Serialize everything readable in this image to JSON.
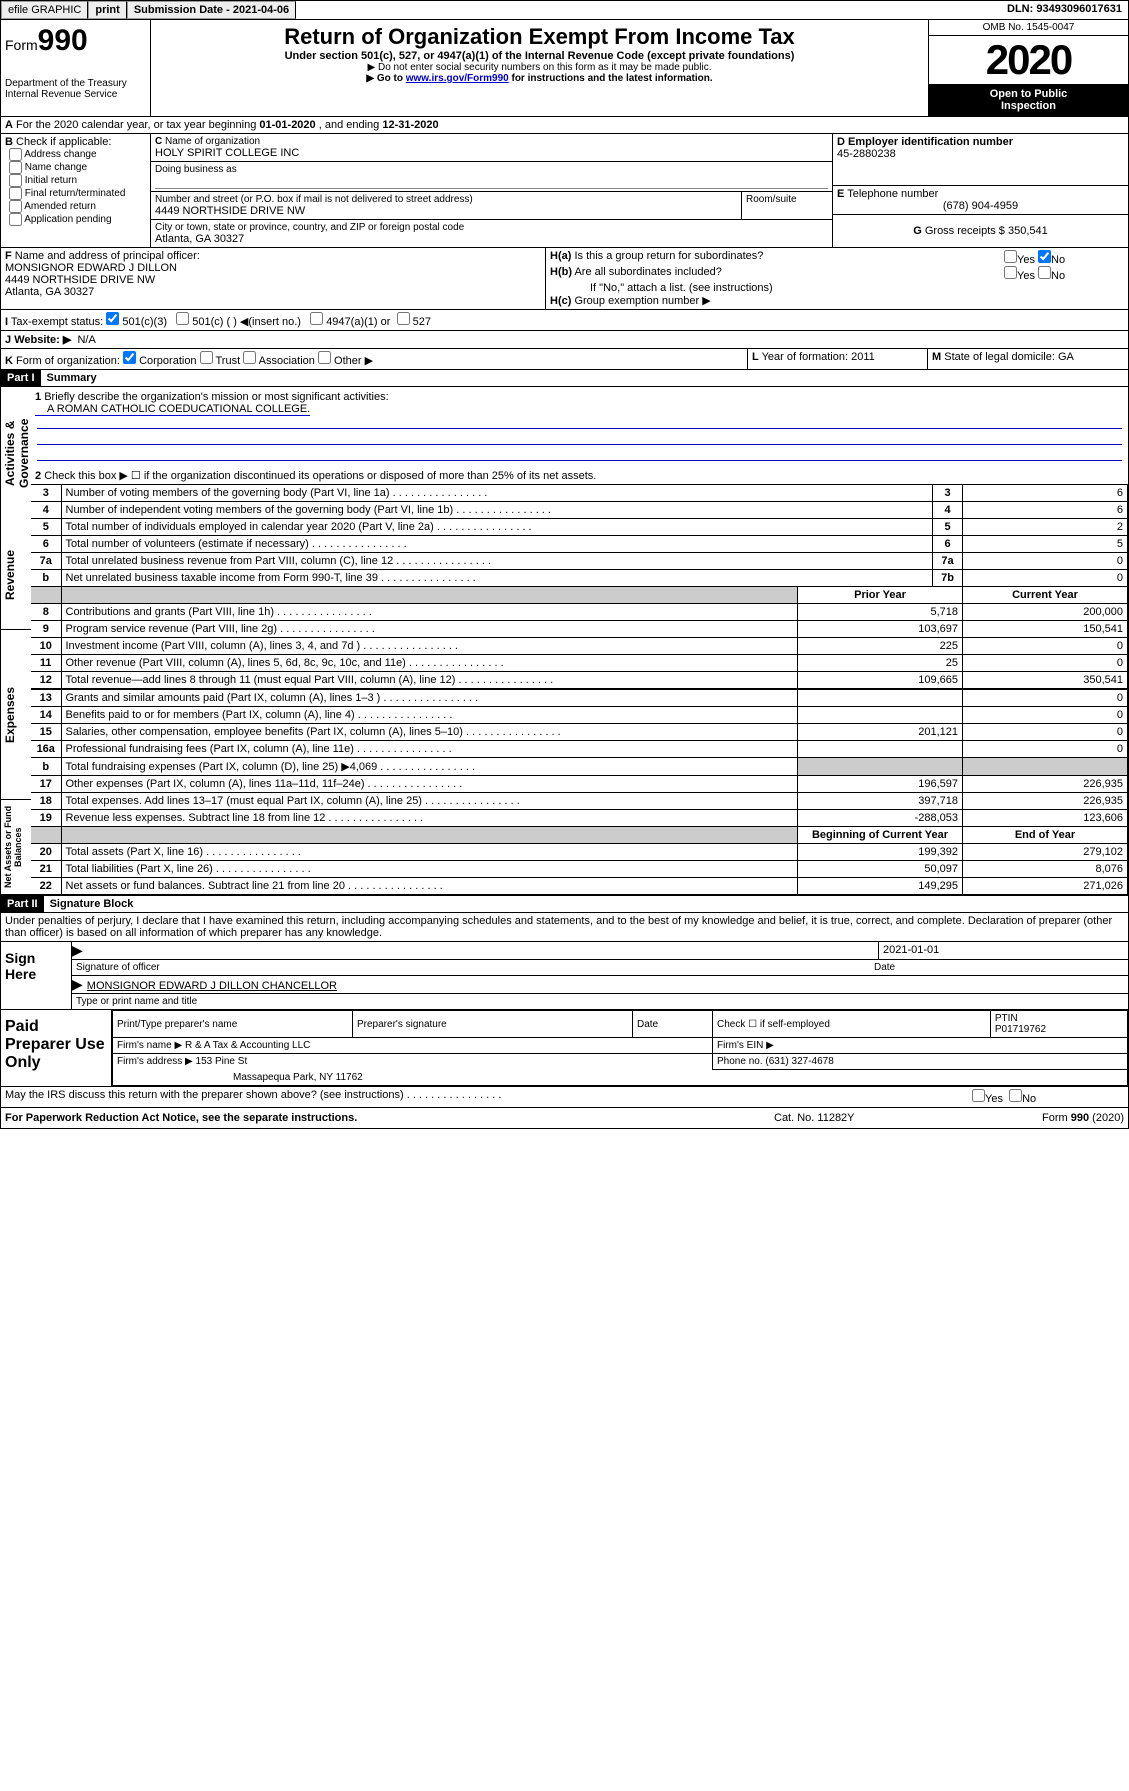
{
  "topbar": {
    "efile": "efile GRAPHIC",
    "print": "print",
    "sub_label": "Submission Date - ",
    "sub_date": "2021-04-06",
    "dln": "DLN: 93493096017631"
  },
  "header": {
    "form_label": "Form",
    "form_num": "990",
    "dept1": "Department of the Treasury",
    "dept2": "Internal Revenue Service",
    "title": "Return of Organization Exempt From Income Tax",
    "sub1": "Under section 501(c), 527, or 4947(a)(1) of the Internal Revenue Code (except private foundations)",
    "sub2": "▶ Do not enter social security numbers on this form as it may be made public.",
    "sub3a": "▶ Go to ",
    "sub3link": "www.irs.gov/Form990",
    "sub3b": " for instructions and the latest information.",
    "omb": "OMB No. 1545-0047",
    "year": "2020",
    "opi1": "Open to Public",
    "opi2": "Inspection"
  },
  "A": {
    "text1": "For the 2020 calendar year, or tax year beginning ",
    "begin": "01-01-2020",
    "text2": " , and ending ",
    "end": "12-31-2020"
  },
  "B": {
    "label": "Check if applicable:",
    "c1": "Address change",
    "c2": "Name change",
    "c3": "Initial return",
    "c4": "Final return/terminated",
    "c5": "Amended return",
    "c6": "Application pending"
  },
  "C": {
    "name_lbl": "Name of organization",
    "name": "HOLY SPIRIT COLLEGE INC",
    "dba_lbl": "Doing business as",
    "addr_lbl": "Number and street (or P.O. box if mail is not delivered to street address)",
    "room_lbl": "Room/suite",
    "addr": "4449 NORTHSIDE DRIVE NW",
    "city_lbl": "City or town, state or province, country, and ZIP or foreign postal code",
    "city": "Atlanta, GA  30327"
  },
  "D": {
    "lbl": "Employer identification number",
    "val": "45-2880238"
  },
  "E": {
    "lbl": "Telephone number",
    "val": "(678) 904-4959"
  },
  "G": {
    "lbl": "Gross receipts $",
    "val": "350,541"
  },
  "F": {
    "lbl": "Name and address of principal officer:",
    "name": "MONSIGNOR EDWARD J DILLON",
    "addr1": "4449 NORTHSIDE DRIVE NW",
    "addr2": "Atlanta, GA  30327"
  },
  "H": {
    "a": "Is this a group return for subordinates?",
    "b": "Are all subordinates included?",
    "b2": "If \"No,\" attach a list. (see instructions)",
    "c": "Group exemption number ▶",
    "yes": "Yes",
    "no": "No"
  },
  "I": {
    "lbl": "Tax-exempt status:",
    "o1": "501(c)(3)",
    "o2": "501(c) (  ) ◀(insert no.)",
    "o3": "4947(a)(1) or",
    "o4": "527"
  },
  "J": {
    "lbl": "Website: ▶",
    "val": "N/A"
  },
  "K": {
    "lbl": "Form of organization:",
    "o1": "Corporation",
    "o2": "Trust",
    "o3": "Association",
    "o4": "Other ▶"
  },
  "L": {
    "lbl": "Year of formation:",
    "val": "2011"
  },
  "M": {
    "lbl": "State of legal domicile:",
    "val": "GA"
  },
  "part1": {
    "hdr": "Part I",
    "title": "Summary"
  },
  "gov": {
    "label": "Activities & Governance",
    "l1_lbl": "Briefly describe the organization's mission or most significant activities:",
    "l1": "A ROMAN CATHOLIC COEDUCATIONAL COLLEGE.",
    "l2": "Check this box ▶ ☐ if the organization discontinued its operations or disposed of more than 25% of its net assets.",
    "lines": [
      {
        "n": "3",
        "d": "Number of voting members of the governing body (Part VI, line 1a)",
        "b": "3",
        "v": "6"
      },
      {
        "n": "4",
        "d": "Number of independent voting members of the governing body (Part VI, line 1b)",
        "b": "4",
        "v": "6"
      },
      {
        "n": "5",
        "d": "Total number of individuals employed in calendar year 2020 (Part V, line 2a)",
        "b": "5",
        "v": "2"
      },
      {
        "n": "6",
        "d": "Total number of volunteers (estimate if necessary)",
        "b": "6",
        "v": "5"
      },
      {
        "n": "7a",
        "d": "Total unrelated business revenue from Part VIII, column (C), line 12",
        "b": "7a",
        "v": "0"
      },
      {
        "n": "b",
        "d": "Net unrelated business taxable income from Form 990-T, line 39",
        "b": "7b",
        "v": "0"
      }
    ]
  },
  "rev": {
    "label": "Revenue",
    "hdr_prior": "Prior Year",
    "hdr_curr": "Current Year",
    "lines": [
      {
        "n": "8",
        "d": "Contributions and grants (Part VIII, line 1h)",
        "p": "5,718",
        "c": "200,000"
      },
      {
        "n": "9",
        "d": "Program service revenue (Part VIII, line 2g)",
        "p": "103,697",
        "c": "150,541"
      },
      {
        "n": "10",
        "d": "Investment income (Part VIII, column (A), lines 3, 4, and 7d )",
        "p": "225",
        "c": "0"
      },
      {
        "n": "11",
        "d": "Other revenue (Part VIII, column (A), lines 5, 6d, 8c, 9c, 10c, and 11e)",
        "p": "25",
        "c": "0"
      },
      {
        "n": "12",
        "d": "Total revenue—add lines 8 through 11 (must equal Part VIII, column (A), line 12)",
        "p": "109,665",
        "c": "350,541"
      }
    ]
  },
  "exp": {
    "label": "Expenses",
    "lines": [
      {
        "n": "13",
        "d": "Grants and similar amounts paid (Part IX, column (A), lines 1–3 )",
        "p": "",
        "c": "0"
      },
      {
        "n": "14",
        "d": "Benefits paid to or for members (Part IX, column (A), line 4)",
        "p": "",
        "c": "0"
      },
      {
        "n": "15",
        "d": "Salaries, other compensation, employee benefits (Part IX, column (A), lines 5–10)",
        "p": "201,121",
        "c": "0"
      },
      {
        "n": "16a",
        "d": "Professional fundraising fees (Part IX, column (A), line 11e)",
        "p": "",
        "c": "0"
      },
      {
        "n": "b",
        "d": "Total fundraising expenses (Part IX, column (D), line 25) ▶4,069",
        "p": "shade",
        "c": "shade"
      },
      {
        "n": "17",
        "d": "Other expenses (Part IX, column (A), lines 11a–11d, 11f–24e)",
        "p": "196,597",
        "c": "226,935"
      },
      {
        "n": "18",
        "d": "Total expenses. Add lines 13–17 (must equal Part IX, column (A), line 25)",
        "p": "397,718",
        "c": "226,935"
      },
      {
        "n": "19",
        "d": "Revenue less expenses. Subtract line 18 from line 12",
        "p": "-288,053",
        "c": "123,606"
      }
    ]
  },
  "net": {
    "label": "Net Assets or Fund Balances",
    "hdr_begin": "Beginning of Current Year",
    "hdr_end": "End of Year",
    "lines": [
      {
        "n": "20",
        "d": "Total assets (Part X, line 16)",
        "p": "199,392",
        "c": "279,102"
      },
      {
        "n": "21",
        "d": "Total liabilities (Part X, line 26)",
        "p": "50,097",
        "c": "8,076"
      },
      {
        "n": "22",
        "d": "Net assets or fund balances. Subtract line 21 from line 20",
        "p": "149,295",
        "c": "271,026"
      }
    ]
  },
  "part2": {
    "hdr": "Part II",
    "title": "Signature Block"
  },
  "perjury": "Under penalties of perjury, I declare that I have examined this return, including accompanying schedules and statements, and to the best of my knowledge and belief, it is true, correct, and complete. Declaration of preparer (other than officer) is based on all information of which preparer has any knowledge.",
  "sign": {
    "here": "Sign Here",
    "sig_lbl": "Signature of officer",
    "date_lbl": "Date",
    "date": "2021-01-01",
    "name": "MONSIGNOR EDWARD J DILLON CHANCELLOR",
    "name_lbl": "Type or print name and title"
  },
  "paid": {
    "lbl": "Paid Preparer Use Only",
    "h1": "Print/Type preparer's name",
    "h2": "Preparer's signature",
    "h3": "Date",
    "h4_lbl": "Check ☐ if self-employed",
    "h5_lbl": "PTIN",
    "h5": "P01719762",
    "firm_lbl": "Firm's name   ▶",
    "firm": "R & A Tax & Accounting LLC",
    "ein_lbl": "Firm's EIN ▶",
    "addr_lbl": "Firm's address ▶",
    "addr1": "153 Pine St",
    "addr2": "Massapequa Park, NY  11762",
    "phone_lbl": "Phone no.",
    "phone": "(631) 327-4678"
  },
  "discuss": "May the IRS discuss this return with the preparer shown above? (see instructions)",
  "footer": {
    "pra": "For Paperwork Reduction Act Notice, see the separate instructions.",
    "cat": "Cat. No. 11282Y",
    "form": "Form 990 (2020)"
  }
}
